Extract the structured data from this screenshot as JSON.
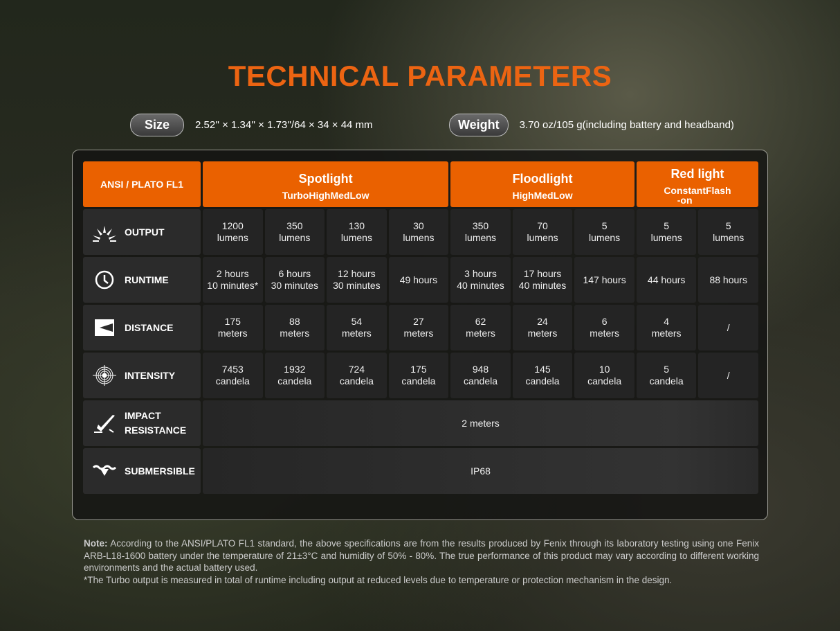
{
  "title": "TECHNICAL PARAMETERS",
  "size": {
    "label": "Size",
    "value": "2.52'' × 1.34'' × 1.73''/64 × 34 × 44 mm"
  },
  "weight": {
    "label": "Weight",
    "value": "3.70 oz/105 g(including battery and headband)"
  },
  "table": {
    "corner": "ANSI / PLATO FL1",
    "groups": [
      {
        "name": "Spotlight",
        "modes": [
          "Turbo",
          "High",
          "Med",
          "Low"
        ]
      },
      {
        "name": "Floodlight",
        "modes": [
          "High",
          "Med",
          "Low"
        ]
      },
      {
        "name": "Red light",
        "modes": [
          "Constant\n-on",
          "Flash"
        ]
      }
    ],
    "rows": [
      {
        "label": "OUTPUT",
        "icon": "light-burst-icon",
        "cells": [
          "1200\nlumens",
          "350\nlumens",
          "130\nlumens",
          "30\nlumens",
          "350\nlumens",
          "70\nlumens",
          "5\nlumens",
          "5\nlumens",
          "5\nlumens"
        ]
      },
      {
        "label": "RUNTIME",
        "icon": "clock-icon",
        "cells": [
          "2 hours\n10 minutes*",
          "6 hours\n30 minutes",
          "12 hours\n30 minutes",
          "49 hours",
          "3 hours\n40 minutes",
          "17 hours\n40 minutes",
          "147 hours",
          "44 hours",
          "88 hours"
        ]
      },
      {
        "label": "DISTANCE",
        "icon": "beam-distance-icon",
        "cells": [
          "175\nmeters",
          "88\nmeters",
          "54\nmeters",
          "27\nmeters",
          "62\nmeters",
          "24\nmeters",
          "6\nmeters",
          "4\nmeters",
          "/"
        ]
      },
      {
        "label": "INTENSITY",
        "icon": "target-icon",
        "cells": [
          "7453\ncandela",
          "1932\ncandela",
          "724\ncandela",
          "175\ncandela",
          "948\ncandela",
          "145\ncandela",
          "10\ncandela",
          "5\ncandela",
          "/"
        ]
      },
      {
        "label": "IMPACT\nRESISTANCE",
        "icon": "impact-icon",
        "span": "2 meters"
      },
      {
        "label": "SUBMERSIBLE",
        "icon": "submersible-icon",
        "span": "IP68"
      }
    ]
  },
  "note": {
    "bold": "Note:",
    "text": " According to the ANSI/PLATO FL1 standard, the above specifications are from the results produced by Fenix through its laboratory testing using one Fenix ARB-L18-1600 battery under the temperature of 21±3°C and humidity of 50% - 80%. The true performance of this product may vary according to different working environments and the actual battery used.",
    "footnote": "*The Turbo output is measured in total of runtime including output at reduced levels due to temperature or protection mechanism in the design."
  }
}
